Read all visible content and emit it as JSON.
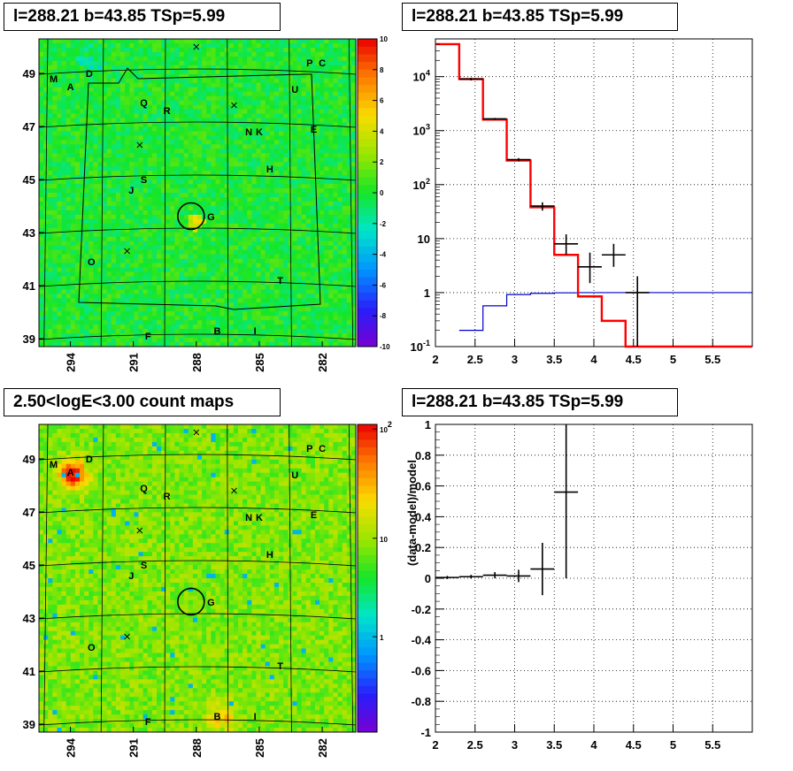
{
  "panels": {
    "tl_title": "l=288.21 b=43.85 TSp=5.99",
    "tr_title": "l=288.21 b=43.85 TSp=5.99",
    "bl_title": "2.50<logE<3.00 count maps",
    "br_title": "l=288.21 b=43.85 TSp=5.99"
  },
  "colors": {
    "model_line": "#ff0000",
    "bkg_line": "#0000cc",
    "data": "#000000"
  },
  "chart_data": [
    {
      "type": "heatmap",
      "panel": "top-left",
      "description": "residual significance map",
      "x_ticks": [
        "294",
        "291",
        "288",
        "285",
        "282"
      ],
      "y_ticks": [
        "49",
        "47",
        "45",
        "43",
        "41",
        "39"
      ],
      "colorbar_ticks": [
        "10",
        "8",
        "6",
        "4",
        "2",
        "0",
        "-2",
        "-4",
        "-6",
        "-8",
        "-10"
      ],
      "zlim": [
        -10,
        10
      ],
      "sources": [
        {
          "label": "M",
          "l": 294.8,
          "b": 48.8
        },
        {
          "label": "A",
          "l": 294.0,
          "b": 48.5
        },
        {
          "label": "D",
          "l": 293.1,
          "b": 49.0
        },
        {
          "label": "P",
          "l": 282.6,
          "b": 49.4
        },
        {
          "label": "C",
          "l": 282.0,
          "b": 49.4
        },
        {
          "label": "U",
          "l": 283.3,
          "b": 48.4
        },
        {
          "label": "Q",
          "l": 290.5,
          "b": 47.9
        },
        {
          "label": "R",
          "l": 289.4,
          "b": 47.6
        },
        {
          "label": "N",
          "l": 285.5,
          "b": 46.8
        },
        {
          "label": "K",
          "l": 285.0,
          "b": 46.8
        },
        {
          "label": "E",
          "l": 282.4,
          "b": 46.9
        },
        {
          "label": "H",
          "l": 284.5,
          "b": 45.4
        },
        {
          "label": "S",
          "l": 290.5,
          "b": 45.0
        },
        {
          "label": "J",
          "l": 291.1,
          "b": 44.6
        },
        {
          "label": "G",
          "l": 287.3,
          "b": 43.6
        },
        {
          "label": "O",
          "l": 293.0,
          "b": 41.9
        },
        {
          "label": "T",
          "l": 284.0,
          "b": 41.2
        },
        {
          "label": "F",
          "l": 290.3,
          "b": 39.1
        },
        {
          "label": "B",
          "l": 287.0,
          "b": 39.3
        },
        {
          "label": "I",
          "l": 285.2,
          "b": 39.3
        }
      ],
      "crosses": [
        {
          "l": 288.0,
          "b": 50.0
        },
        {
          "l": 286.2,
          "b": 47.8
        },
        {
          "l": 290.7,
          "b": 46.3
        },
        {
          "l": 291.3,
          "b": 42.3
        }
      ],
      "target": {
        "l": 288.21,
        "b": 43.85
      }
    },
    {
      "type": "line",
      "panel": "top-right",
      "xlim": [
        2,
        6
      ],
      "ylim_log": [
        0.1,
        50000
      ],
      "log_y": true,
      "x_ticks": [
        "2",
        "2.5",
        "3",
        "3.5",
        "4",
        "4.5",
        "5",
        "5.5"
      ],
      "y_ticks": [
        "10^{4}",
        "10^{3}",
        "10^{2}",
        "10",
        "1",
        "10^{-1}"
      ],
      "model_edges": [
        2.0,
        2.3,
        2.6,
        2.9,
        3.2,
        3.5,
        3.8,
        4.1,
        4.4,
        6.0
      ],
      "model_values": [
        40000,
        9000,
        1600,
        280,
        38,
        5,
        0.85,
        0.3,
        0.1
      ],
      "bkg_edges": [
        2.3,
        2.6,
        2.9,
        3.2,
        3.5,
        3.8,
        4.1,
        4.4,
        4.7,
        6.0
      ],
      "bkg_values": [
        0.2,
        0.57,
        0.92,
        0.97,
        0.99,
        1.0,
        1.0,
        1.0,
        1.0
      ],
      "data_points": [
        {
          "x": 2.45,
          "y": 9000,
          "xerr": 0.15,
          "ylo": 8500,
          "yhi": 9500
        },
        {
          "x": 2.75,
          "y": 1650,
          "xerr": 0.15,
          "ylo": 1580,
          "yhi": 1720
        },
        {
          "x": 3.05,
          "y": 290,
          "xerr": 0.15,
          "ylo": 270,
          "yhi": 310
        },
        {
          "x": 3.35,
          "y": 40,
          "xerr": 0.15,
          "ylo": 33,
          "yhi": 47
        },
        {
          "x": 3.65,
          "y": 8,
          "xerr": 0.15,
          "ylo": 5,
          "yhi": 12
        },
        {
          "x": 3.95,
          "y": 3,
          "xerr": 0.15,
          "ylo": 1.5,
          "yhi": 5.5
        },
        {
          "x": 4.25,
          "y": 5,
          "xerr": 0.15,
          "ylo": 3,
          "yhi": 8
        },
        {
          "x": 4.55,
          "y": 1,
          "xerr": 0.15,
          "ylo": 0.1,
          "yhi": 2
        }
      ]
    },
    {
      "type": "heatmap",
      "panel": "bottom-left",
      "description": "count map",
      "x_ticks": [
        "294",
        "291",
        "288",
        "285",
        "282"
      ],
      "y_ticks": [
        "49",
        "47",
        "45",
        "43",
        "41",
        "39"
      ],
      "colorbar_ticks": [
        "10^{2}",
        "10",
        "1"
      ],
      "log_z": true
    },
    {
      "type": "scatter",
      "panel": "bottom-right",
      "xlim": [
        2,
        6
      ],
      "ylim": [
        -1,
        1
      ],
      "ylabel": "(data-model)/model",
      "x_ticks": [
        "2",
        "2.5",
        "3",
        "3.5",
        "4",
        "4.5",
        "5",
        "5.5"
      ],
      "y_ticks": [
        "1",
        "0.8",
        "0.6",
        "0.4",
        "0.2",
        "0",
        "-0.2",
        "-0.4",
        "-0.6",
        "-0.8",
        "-1"
      ],
      "points": [
        {
          "x": 2.15,
          "y": 0.005,
          "xerr": 0.15,
          "yerr": 0.01
        },
        {
          "x": 2.45,
          "y": 0.01,
          "xerr": 0.15,
          "yerr": 0.012
        },
        {
          "x": 2.75,
          "y": 0.02,
          "xerr": 0.15,
          "yerr": 0.02
        },
        {
          "x": 3.05,
          "y": 0.015,
          "xerr": 0.15,
          "yerr": 0.04
        },
        {
          "x": 3.35,
          "y": 0.06,
          "xerr": 0.15,
          "yerr": 0.17
        },
        {
          "x": 3.65,
          "y": 0.56,
          "xerr": 0.15,
          "ylo": 0.0,
          "yhi": 1.0
        }
      ]
    }
  ]
}
